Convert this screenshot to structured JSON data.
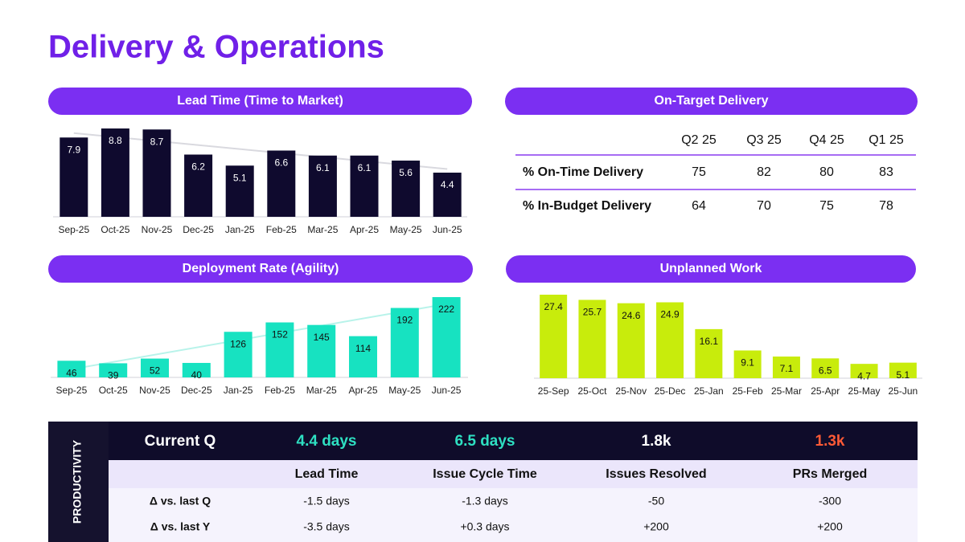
{
  "title": "Delivery & Operations",
  "chart_data": [
    {
      "type": "bar",
      "title": "Lead Time (Time to Market)",
      "categories": [
        "Sep-25",
        "Oct-25",
        "Nov-25",
        "Dec-25",
        "Jan-25",
        "Feb-25",
        "Mar-25",
        "Apr-25",
        "May-25",
        "Jun-25"
      ],
      "values": [
        7.9,
        8.8,
        8.7,
        6.2,
        5.1,
        6.6,
        6.1,
        6.1,
        5.6,
        4.4
      ],
      "color": "#0f0a2e",
      "label_color": "#ffffff",
      "trendline": true,
      "trend_color": "#d9d9df"
    },
    {
      "type": "bar",
      "title": "Deployment Rate (Agility)",
      "categories": [
        "Sep-25",
        "Oct-25",
        "Nov-25",
        "Dec-25",
        "Jan-25",
        "Feb-25",
        "Mar-25",
        "Apr-25",
        "May-25",
        "Jun-25"
      ],
      "values": [
        46,
        39,
        52,
        40,
        126,
        152,
        145,
        114,
        192,
        222
      ],
      "color": "#17e2c1",
      "label_color": "#111111",
      "trendline": true,
      "trend_color": "#b8f3ea"
    },
    {
      "type": "bar",
      "title": "Unplanned Work",
      "categories": [
        "25-Sep",
        "25-Oct",
        "25-Nov",
        "25-Dec",
        "25-Jan",
        "25-Feb",
        "25-Mar",
        "25-Apr",
        "25-May",
        "25-Jun"
      ],
      "values": [
        27.4,
        25.7,
        24.6,
        24.9,
        16.1,
        9.1,
        7.1,
        6.5,
        4.7,
        5.1
      ],
      "color": "#c8ec0c",
      "label_color": "#111111",
      "trendline": false
    }
  ],
  "on_target": {
    "title": "On-Target Delivery",
    "columns": [
      "Q2 25",
      "Q3 25",
      "Q4 25",
      "Q1 25"
    ],
    "rows": [
      {
        "label": "% On-Time Delivery",
        "values": [
          75,
          82,
          80,
          83
        ]
      },
      {
        "label": "% In-Budget Delivery",
        "values": [
          64,
          70,
          75,
          78
        ]
      }
    ]
  },
  "productivity": {
    "label": "PRODUCTIVITY",
    "current": {
      "label": "Current Q",
      "values": [
        {
          "text": "4.4 days",
          "color": "#2ee0c2"
        },
        {
          "text": "6.5 days",
          "color": "#2ee0c2"
        },
        {
          "text": "1.8k",
          "color": "#ffffff"
        },
        {
          "text": "1.3k",
          "color": "#ff5a36"
        }
      ]
    },
    "headers": [
      "Lead Time",
      "Issue Cycle Time",
      "Issues Resolved",
      "PRs Merged"
    ],
    "rows": [
      {
        "label": "Δ vs. last Q",
        "values": [
          "-1.5 days",
          "-1.3 days",
          "-50",
          "-300"
        ]
      },
      {
        "label": "Δ vs. last Y",
        "values": [
          "-3.5 days",
          "+0.3 days",
          "+200",
          "+200"
        ]
      }
    ]
  }
}
